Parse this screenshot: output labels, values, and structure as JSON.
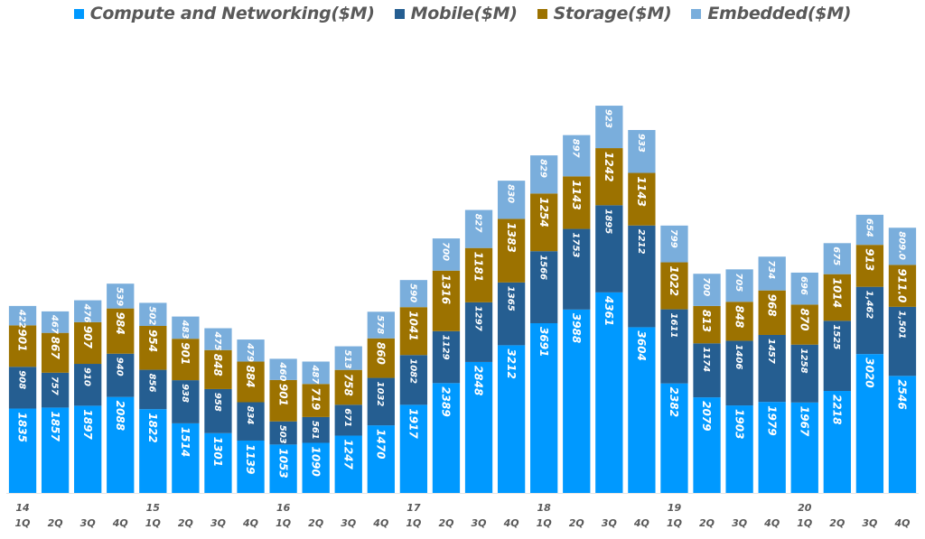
{
  "chart_data": {
    "type": "bar",
    "stacked": true,
    "title": "",
    "xlabel": "",
    "ylabel": "",
    "ylim": [
      0,
      9000
    ],
    "grid": false,
    "legend_position": "top",
    "categories": [
      "1Q",
      "2Q",
      "3Q",
      "4Q",
      "1Q",
      "2Q",
      "3Q",
      "4Q",
      "1Q",
      "2Q",
      "3Q",
      "4Q",
      "1Q",
      "2Q",
      "3Q",
      "4Q",
      "1Q",
      "2Q",
      "3Q",
      "4Q",
      "1Q",
      "2Q",
      "3Q",
      "4Q",
      "1Q",
      "2Q",
      "3Q",
      "4Q"
    ],
    "year_labels": [
      "14",
      "",
      "",
      "",
      "15",
      "",
      "",
      "",
      "16",
      "",
      "",
      "",
      "17",
      "",
      "",
      "",
      "18",
      "",
      "",
      "",
      "19",
      "",
      "",
      "",
      "20",
      "",
      "",
      ""
    ],
    "series": [
      {
        "name": "Compute and Networking($M)",
        "color": "#0099FF",
        "values": [
          1835,
          1857,
          1897,
          2088,
          1822,
          1514,
          1301,
          1139,
          1053,
          1090,
          1247,
          1470,
          1917,
          2389,
          2848,
          3212,
          3691,
          3988,
          4361,
          3604,
          2382,
          2079,
          1903,
          1979,
          1967,
          2218,
          3020,
          2546
        ],
        "labels": [
          "1835",
          "1857",
          "1897",
          "2088",
          "1822",
          "1514",
          "1301",
          "1139",
          "1053",
          "1090",
          "1247",
          "1470",
          "1917",
          "2389",
          "2848",
          "3212",
          "3691",
          "3988",
          "4361",
          "3604",
          "2382",
          "2079",
          "1903",
          "1979",
          "1967",
          "2218",
          "3020",
          "2546"
        ]
      },
      {
        "name": "Mobile($M)",
        "color": "#255E91",
        "values": [
          908,
          757,
          910,
          940,
          856,
          938,
          958,
          834,
          503,
          561,
          671,
          1032,
          1082,
          1129,
          1297,
          1365,
          1566,
          1753,
          1895,
          2212,
          1611,
          1174,
          1406,
          1457,
          1258,
          1525,
          1462,
          1501
        ],
        "labels": [
          "908",
          "757",
          "910",
          "940",
          "856",
          "938",
          "958",
          "834",
          "503",
          "561",
          "671",
          "1032",
          "1082",
          "1129",
          "1297",
          "1365",
          "1566",
          "1753",
          "1895",
          "2212",
          "1611",
          "1174",
          "1406",
          "1457",
          "1258",
          "1525",
          "1,462",
          "1,501"
        ]
      },
      {
        "name": "Storage($M)",
        "color": "#9C7200",
        "values": [
          901,
          867,
          907,
          984,
          954,
          901,
          848,
          884,
          901,
          719,
          758,
          860,
          1041,
          1316,
          1181,
          1383,
          1254,
          1143,
          1242,
          1143,
          1022,
          813,
          848,
          968,
          870,
          1014,
          913,
          911
        ],
        "labels": [
          "901",
          "867",
          "907",
          "984",
          "954",
          "901",
          "848",
          "884",
          "901",
          "719",
          "758",
          "860",
          "1041",
          "1316",
          "1181",
          "1383",
          "1254",
          "1143",
          "1242",
          "1143",
          "1022",
          "813",
          "848",
          "968",
          "870",
          "1014",
          "913",
          "911.0"
        ]
      },
      {
        "name": "Embedded($M)",
        "color": "#7AAEDC",
        "values": [
          422,
          467,
          476,
          539,
          502,
          483,
          475,
          479,
          460,
          487,
          513,
          578,
          590,
          700,
          827,
          830,
          829,
          897,
          923,
          933,
          799,
          700,
          705,
          734,
          696,
          675,
          654,
          809
        ],
        "labels": [
          "422",
          "467",
          "476",
          "539",
          "502",
          "483",
          "475",
          "479",
          "460",
          "487",
          "513",
          "578",
          "590",
          "700",
          "827",
          "830",
          "829",
          "897",
          "923",
          "933",
          "799",
          "700",
          "705",
          "734",
          "696",
          "675",
          "654",
          "809.0"
        ]
      }
    ]
  }
}
